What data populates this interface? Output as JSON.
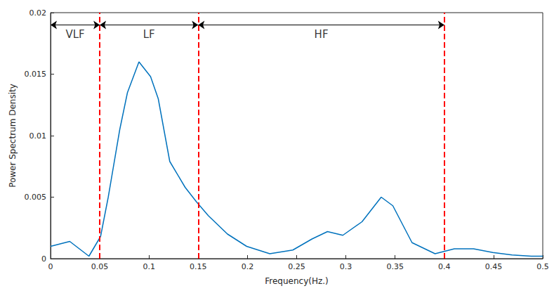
{
  "chart_data": {
    "type": "line",
    "x_label": "Frequency(Hz.)",
    "y_label": "Power Spectrum Density",
    "x": [
      0,
      0.0195,
      0.039,
      0.0508,
      0.0586,
      0.0703,
      0.0781,
      0.0898,
      0.1016,
      0.1094,
      0.1211,
      0.1367,
      0.1484,
      0.1602,
      0.1797,
      0.1992,
      0.2227,
      0.2461,
      0.2656,
      0.2813,
      0.2969,
      0.3164,
      0.3359,
      0.3477,
      0.3672,
      0.3906,
      0.4102,
      0.4297,
      0.4492,
      0.4688,
      0.4883,
      0.5
    ],
    "values": [
      0.001,
      0.0014,
      0.0002,
      0.0018,
      0.005,
      0.0105,
      0.0135,
      0.016,
      0.0148,
      0.013,
      0.0079,
      0.0058,
      0.0046,
      0.0035,
      0.002,
      0.001,
      0.0004,
      0.0007,
      0.0016,
      0.0022,
      0.0019,
      0.003,
      0.005,
      0.0043,
      0.0013,
      0.0004,
      0.0008,
      0.0008,
      0.0005,
      0.0003,
      0.0002,
      0.0002
    ],
    "color": "#0072bd",
    "xlim": [
      0,
      0.5
    ],
    "xticks": [
      0,
      0.05,
      0.1,
      0.15,
      0.2,
      0.25,
      0.3,
      0.35,
      0.4,
      0.45,
      0.5
    ],
    "ylim": [
      0,
      0.02
    ],
    "yticks": [
      0,
      0.005,
      0.01,
      0.015,
      0.02
    ],
    "grid": false,
    "annotations": [
      {
        "text": "VLF",
        "x_start": 0,
        "x_end": 0.05,
        "y": 0.019
      },
      {
        "text": "LF",
        "x_start": 0.05,
        "x_end": 0.15,
        "y": 0.019
      },
      {
        "text": "HF",
        "x_start": 0.15,
        "x_end": 0.4,
        "y": 0.019
      }
    ]
  }
}
